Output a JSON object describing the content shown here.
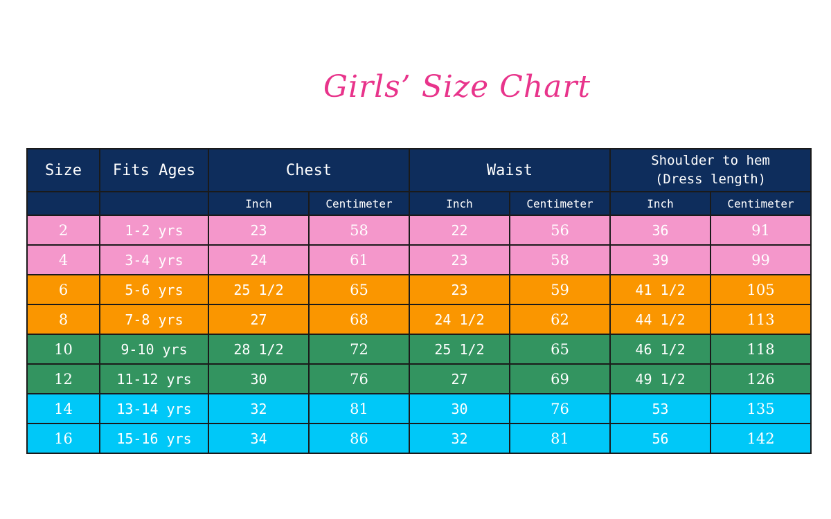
{
  "title": "Girls’ Size Chart",
  "header": {
    "size": "Size",
    "fits_ages": "Fits Ages",
    "chest": "Chest",
    "waist": "Waist",
    "shoulder_line1": "Shoulder to hem",
    "shoulder_line2": "(Dress length)",
    "inch": "Inch",
    "centimeter": "Centimeter"
  },
  "colors": {
    "title": "#e8348b",
    "header_bg": "#0e2d5c",
    "pink": "#f497cb",
    "orange": "#fa9600",
    "green": "#339460",
    "cyan": "#00c8f8"
  },
  "rows": [
    {
      "size": "2",
      "ages": "1-2 yrs",
      "chest_in": "23",
      "chest_cm": "58",
      "waist_in": "22",
      "waist_cm": "56",
      "length_in": "36",
      "length_cm": "91",
      "color": "pink"
    },
    {
      "size": "4",
      "ages": "3-4 yrs",
      "chest_in": "24",
      "chest_cm": "61",
      "waist_in": "23",
      "waist_cm": "58",
      "length_in": "39",
      "length_cm": "99",
      "color": "pink"
    },
    {
      "size": "6",
      "ages": "5-6 yrs",
      "chest_in": "25 1/2",
      "chest_cm": "65",
      "waist_in": "23",
      "waist_cm": "59",
      "length_in": "41 1/2",
      "length_cm": "105",
      "color": "orange"
    },
    {
      "size": "8",
      "ages": "7-8 yrs",
      "chest_in": "27",
      "chest_cm": "68",
      "waist_in": "24 1/2",
      "waist_cm": "62",
      "length_in": "44 1/2",
      "length_cm": "113",
      "color": "orange"
    },
    {
      "size": "10",
      "ages": "9-10 yrs",
      "chest_in": "28 1/2",
      "chest_cm": "72",
      "waist_in": "25 1/2",
      "waist_cm": "65",
      "length_in": "46 1/2",
      "length_cm": "118",
      "color": "green"
    },
    {
      "size": "12",
      "ages": "11-12 yrs",
      "chest_in": "30",
      "chest_cm": "76",
      "waist_in": "27",
      "waist_cm": "69",
      "length_in": "49 1/2",
      "length_cm": "126",
      "color": "green"
    },
    {
      "size": "14",
      "ages": "13-14 yrs",
      "chest_in": "32",
      "chest_cm": "81",
      "waist_in": "30",
      "waist_cm": "76",
      "length_in": "53",
      "length_cm": "135",
      "color": "cyan"
    },
    {
      "size": "16",
      "ages": "15-16 yrs",
      "chest_in": "34",
      "chest_cm": "86",
      "waist_in": "32",
      "waist_cm": "81",
      "length_in": "56",
      "length_cm": "142",
      "color": "cyan"
    }
  ]
}
